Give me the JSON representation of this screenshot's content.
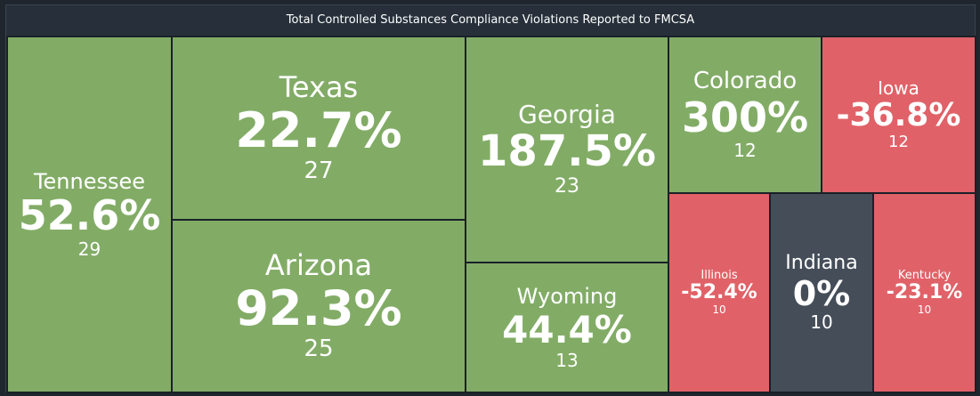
{
  "title": "Total Controlled Substances Compliance Violations Reported to FMCSA",
  "colors": {
    "increase": "#82ac66",
    "decrease": "#e06268",
    "no_change": "#444d58",
    "background": "#1a2027",
    "title_bar": "#27303a"
  },
  "chart_data": {
    "type": "treemap",
    "title": "Total Controlled Substances Compliance Violations Reported to FMCSA",
    "items": [
      {
        "name": "Tennessee",
        "change": "52.6%",
        "count": 29
      },
      {
        "name": "Texas",
        "change": "22.7%",
        "count": 27
      },
      {
        "name": "Arizona",
        "change": "92.3%",
        "count": 25
      },
      {
        "name": "Georgia",
        "change": "187.5%",
        "count": 23
      },
      {
        "name": "Wyoming",
        "change": "44.4%",
        "count": 13
      },
      {
        "name": "Colorado",
        "change": "300%",
        "count": 12
      },
      {
        "name": "Iowa",
        "change": "-36.8%",
        "count": 12
      },
      {
        "name": "Illinois",
        "change": "-52.4%",
        "count": 10
      },
      {
        "name": "Indiana",
        "change": "0%",
        "count": 10
      },
      {
        "name": "Kentucky",
        "change": "-23.1%",
        "count": 10
      }
    ]
  }
}
